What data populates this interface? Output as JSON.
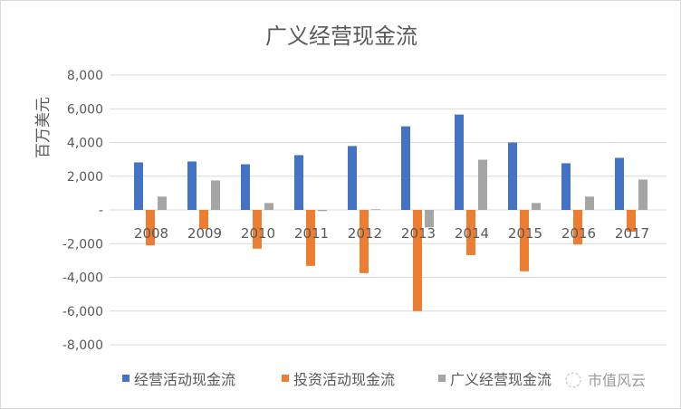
{
  "chart_data": {
    "type": "bar",
    "title": "广义经营现金流",
    "ylabel": "百万美元",
    "xlabel": "",
    "ylim": [
      -8000,
      8000
    ],
    "yticks": [
      8000,
      6000,
      4000,
      2000,
      0,
      -2000,
      -4000,
      -6000,
      -8000
    ],
    "ytick_labels": [
      "8,000",
      "6,000",
      "4,000",
      "2,000",
      "-",
      "-2,000",
      "-4,000",
      "-6,000",
      "-8,000"
    ],
    "grid": true,
    "legend_position": "bottom",
    "categories": [
      "2008",
      "2009",
      "2010",
      "2011",
      "2012",
      "2013",
      "2014",
      "2015",
      "2016",
      "2017"
    ],
    "series": [
      {
        "name": "经营活动现金流",
        "color": "#4472C4",
        "values": [
          2820,
          2875,
          2710,
          3250,
          3790,
          4960,
          5660,
          4000,
          2770,
          3090
        ]
      },
      {
        "name": "投资活动现金流",
        "color": "#ED7D31",
        "values": [
          -2100,
          -1130,
          -2300,
          -3320,
          -3750,
          -6000,
          -2680,
          -3640,
          -2050,
          -1290
        ]
      },
      {
        "name": "广义经营现金流",
        "color": "#A5A5A5",
        "values": [
          790,
          1750,
          410,
          -70,
          40,
          -1040,
          2980,
          410,
          790,
          1800
        ]
      }
    ]
  },
  "watermark": {
    "text": "市值风云",
    "icon": "logo-circle-icon"
  }
}
